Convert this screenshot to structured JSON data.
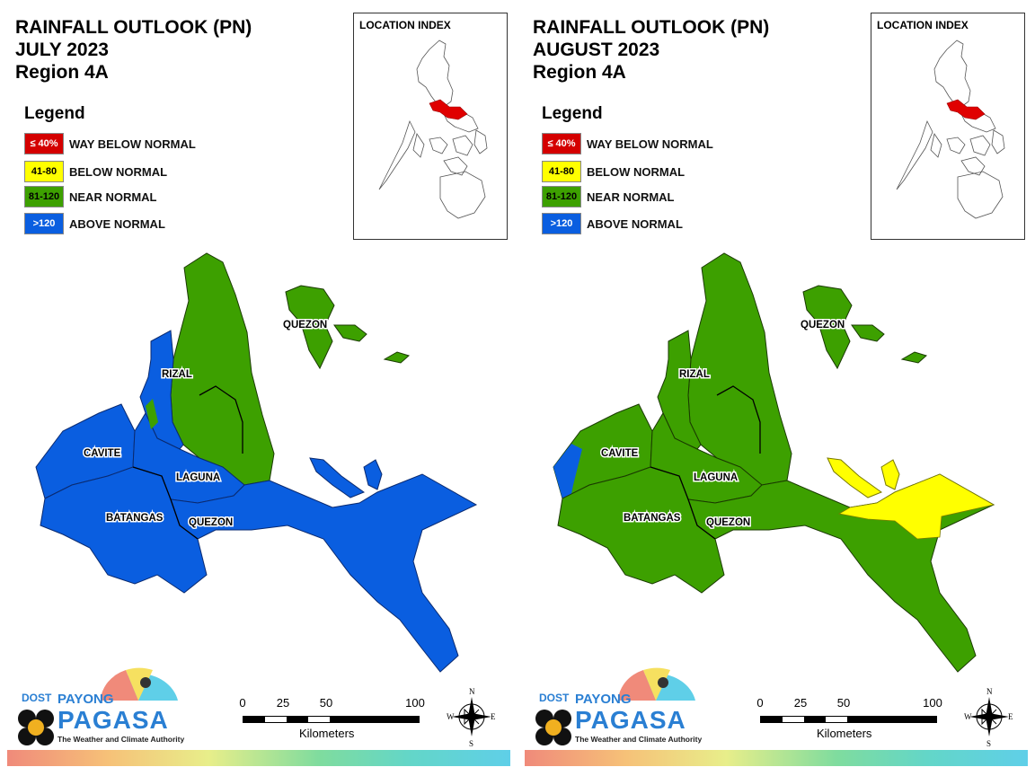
{
  "panels": [
    {
      "title_line1": "RAINFALL OUTLOOK (PN)",
      "title_line2": "JULY 2023",
      "title_line3": "Region 4A",
      "legend_title": "Legend",
      "legend": [
        {
          "swatch": "≤ 40%",
          "label": "WAY BELOW NORMAL",
          "color": "#d40000"
        },
        {
          "swatch": "41-80",
          "label": "BELOW NORMAL",
          "color": "#ffff00"
        },
        {
          "swatch": "81-120",
          "label": "NEAR NORMAL",
          "color": "#3da000"
        },
        {
          "swatch": ">120",
          "label": "ABOVE NORMAL",
          "color": "#0a5ee0"
        }
      ],
      "location_index": "LOCATION INDEX",
      "places": {
        "quezon_north": "QUEZON",
        "rizal": "RIZAL",
        "cavite": "CAVITE",
        "laguna": "LAGUNA",
        "batangas": "BATANGAS",
        "quezon_south": "QUEZON"
      },
      "outlook": {
        "cavite": "ABOVE NORMAL",
        "batangas": "ABOVE NORMAL",
        "laguna": "ABOVE NORMAL",
        "rizal": "ABOVE NORMAL / NEAR NORMAL",
        "quezon": "NEAR NORMAL / ABOVE NORMAL"
      }
    },
    {
      "title_line1": "RAINFALL OUTLOOK (PN)",
      "title_line2": "AUGUST 2023",
      "title_line3": "Region 4A",
      "legend_title": "Legend",
      "legend": [
        {
          "swatch": "≤ 40%",
          "label": "WAY BELOW NORMAL",
          "color": "#d40000"
        },
        {
          "swatch": "41-80",
          "label": "BELOW NORMAL",
          "color": "#ffff00"
        },
        {
          "swatch": "81-120",
          "label": "NEAR NORMAL",
          "color": "#3da000"
        },
        {
          "swatch": ">120",
          "label": "ABOVE NORMAL",
          "color": "#0a5ee0"
        }
      ],
      "location_index": "LOCATION INDEX",
      "places": {
        "quezon_north": "QUEZON",
        "rizal": "RIZAL",
        "cavite": "CAVITE",
        "laguna": "LAGUNA",
        "batangas": "BATANGAS",
        "quezon_south": "QUEZON"
      },
      "outlook": {
        "cavite": "NEAR NORMAL / ABOVE NORMAL",
        "batangas": "NEAR NORMAL",
        "laguna": "NEAR NORMAL",
        "rizal": "NEAR NORMAL",
        "quezon": "NEAR NORMAL / BELOW NORMAL"
      }
    }
  ],
  "scale": {
    "ticks": [
      "0",
      "25",
      "50",
      "100"
    ],
    "unit": "Kilometers"
  },
  "compass": {
    "n": "N",
    "s": "S",
    "e": "E",
    "w": "W"
  },
  "logo": {
    "dost": "DOST",
    "payong": "PAYONG",
    "pagasa": "PAGASA",
    "tagline": "The Weather and Climate Authority"
  },
  "colors": {
    "red": "#d40000",
    "yellow": "#ffff00",
    "green": "#3da000",
    "blue": "#0a5ee0",
    "highlight": "#e00000"
  }
}
